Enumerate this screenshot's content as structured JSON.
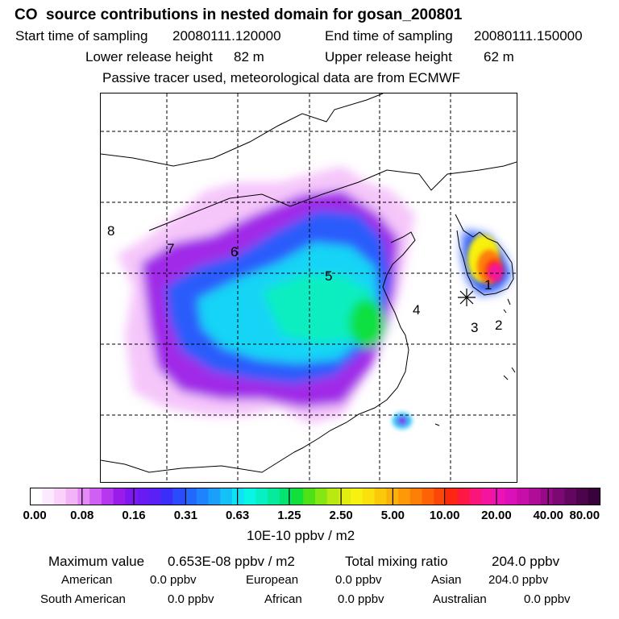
{
  "header": {
    "title": "CO  source contributions in nested domain for gosan_200801",
    "start_label": "Start time of sampling",
    "start_value": "20080111.120000",
    "end_label": "End time of sampling",
    "end_value": "20080111.150000",
    "lower_label": "Lower release height",
    "lower_value": "82 m",
    "upper_label": "Upper release height",
    "upper_value": "62 m",
    "tracer_note": "Passive tracer used, meteorological data are from ECMWF"
  },
  "map": {
    "region_labels": [
      "1",
      "2",
      "3",
      "4",
      "5",
      "6",
      "7",
      "8"
    ],
    "grid": "dashed"
  },
  "colorbar": {
    "tick_labels": [
      "0.00",
      "0.08",
      "0.16",
      "0.31",
      "0.63",
      "1.25",
      "2.50",
      "5.00",
      "10.00",
      "20.00",
      "40.00",
      "80.00"
    ],
    "units": "10E-10 ppbv / m2",
    "colors": [
      "#ffffff",
      "#fde9fd",
      "#f9d1fb",
      "#f3b3f7",
      "#e38af5",
      "#d060f3",
      "#b637ef",
      "#9a1ceb",
      "#7e18ee",
      "#6a1bf3",
      "#5a20f6",
      "#3b2ef8",
      "#2a4cfb",
      "#2368fd",
      "#1e84fd",
      "#1aa0fb",
      "#14c0f8",
      "#0ee2f5",
      "#09f5e6",
      "#06f0c4",
      "#06ea9e",
      "#06e470",
      "#12e03a",
      "#4ee216",
      "#86e614",
      "#b8ea12",
      "#e0ee10",
      "#f8f00e",
      "#fae00c",
      "#fbc80b",
      "#fcb00a",
      "#fd9809",
      "#fd7f08",
      "#fd6207",
      "#fd4507",
      "#fd2610",
      "#fc1842",
      "#f91678",
      "#f414a0",
      "#ec12b6",
      "#dc10b8",
      "#c80ea8",
      "#b00c98",
      "#960a86",
      "#7c0874",
      "#620660",
      "#4c044c",
      "#3a023c"
    ]
  },
  "summary": {
    "max_label": "Maximum value",
    "max_value": "0.653E-08 ppbv / m2",
    "total_label": "Total mixing ratio",
    "total_value": "204.0 ppbv",
    "american_label": "American",
    "american_value": "0.0 ppbv",
    "european_label": "European",
    "european_value": "0.0 ppbv",
    "asian_label": "Asian",
    "asian_value": "204.0 ppbv",
    "south_american_label": "South American",
    "south_american_value": "0.0 ppbv",
    "african_label": "African",
    "african_value": "0.0 ppbv",
    "australian_label": "Australian",
    "australian_value": "0.0 ppbv"
  }
}
